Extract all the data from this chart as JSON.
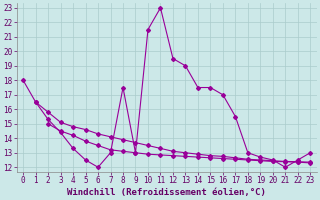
{
  "xlabel": "Windchill (Refroidissement éolien,°C)",
  "line1_x": [
    0,
    1,
    2,
    3,
    4,
    5,
    6,
    7,
    8,
    9,
    10,
    11,
    12,
    13,
    14,
    15,
    16,
    17,
    18,
    19,
    20,
    21,
    22,
    23
  ],
  "line1_y": [
    18.0,
    16.5,
    15.3,
    14.4,
    13.3,
    12.5,
    12.0,
    13.0,
    17.5,
    13.0,
    21.5,
    23.0,
    19.5,
    19.0,
    17.5,
    17.5,
    17.0,
    15.5,
    13.0,
    12.7,
    12.5,
    12.0,
    12.5,
    13.0
  ],
  "line2_x": [
    1,
    2,
    3,
    4,
    5,
    6,
    7,
    8,
    9,
    10,
    11,
    12,
    13,
    14,
    15,
    16,
    17,
    18,
    19,
    20,
    21,
    22,
    23
  ],
  "line2_y": [
    16.5,
    15.8,
    15.1,
    14.8,
    14.6,
    14.3,
    14.1,
    13.9,
    13.7,
    13.5,
    13.3,
    13.1,
    13.0,
    12.9,
    12.8,
    12.75,
    12.65,
    12.55,
    12.5,
    12.45,
    12.4,
    12.38,
    12.35
  ],
  "line3_x": [
    2,
    3,
    4,
    5,
    6,
    7,
    8,
    9,
    10,
    11,
    12,
    13,
    14,
    15,
    16,
    17,
    18,
    19,
    20,
    21,
    22,
    23
  ],
  "line3_y": [
    15.0,
    14.5,
    14.2,
    13.8,
    13.5,
    13.2,
    13.1,
    13.0,
    12.9,
    12.85,
    12.8,
    12.75,
    12.7,
    12.65,
    12.6,
    12.55,
    12.5,
    12.45,
    12.4,
    12.38,
    12.35,
    12.3
  ],
  "line_color": "#990099",
  "bg_color": "#cce8e8",
  "grid_color": "#aacccc",
  "ylim": [
    12,
    23
  ],
  "xlim": [
    0,
    23
  ],
  "yticks": [
    12,
    13,
    14,
    15,
    16,
    17,
    18,
    19,
    20,
    21,
    22,
    23
  ],
  "xticks": [
    0,
    1,
    2,
    3,
    4,
    5,
    6,
    7,
    8,
    9,
    10,
    11,
    12,
    13,
    14,
    15,
    16,
    17,
    18,
    19,
    20,
    21,
    22,
    23
  ],
  "marker": "D",
  "markersize": 2.0,
  "linewidth": 0.8,
  "font_color": "#660066",
  "xlabel_fontsize": 6.5,
  "tick_fontsize": 5.5
}
